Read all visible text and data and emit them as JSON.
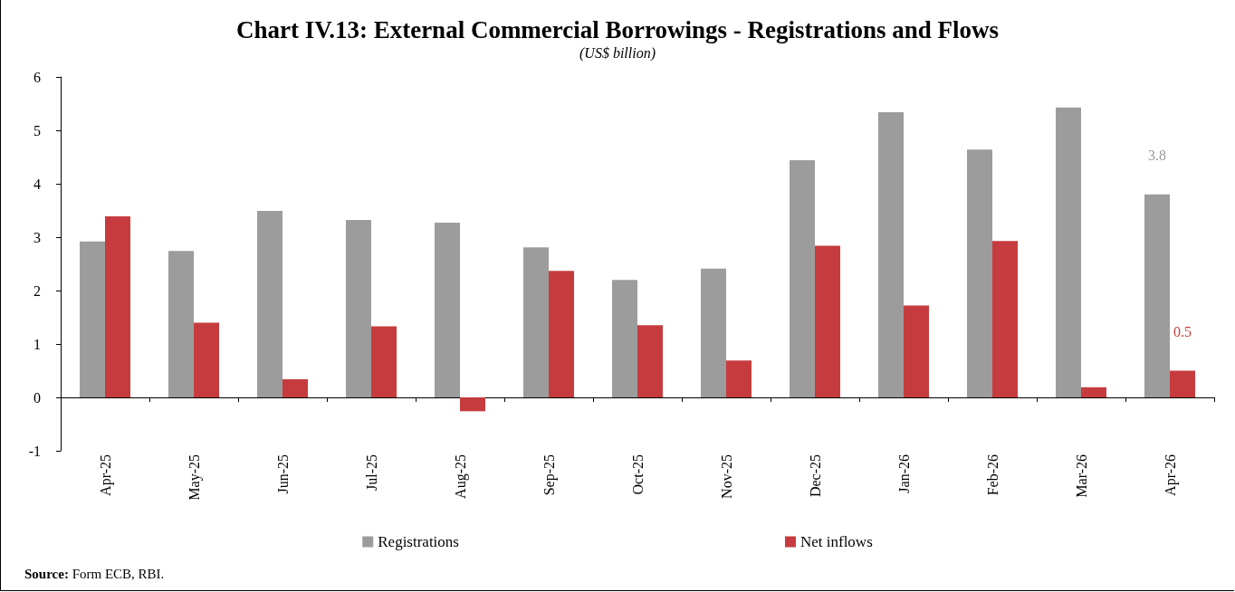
{
  "chart_data": {
    "type": "bar",
    "title": "Chart IV.13: External Commercial Borrowings - Registrations and Flows",
    "subtitle": "(US$ billion)",
    "categories": [
      "Apr-25",
      "May-25",
      "Jun-25",
      "Jul-25",
      "Aug-25",
      "Sep-25",
      "Oct-25",
      "Nov-25",
      "Dec-25",
      "Jan-26",
      "Feb-26",
      "Mar-26",
      "Apr-26"
    ],
    "series": [
      {
        "name": "Registrations",
        "color": "#9c9c9c",
        "values": [
          2.92,
          2.74,
          3.49,
          3.32,
          3.27,
          2.81,
          2.2,
          2.41,
          4.44,
          5.34,
          4.64,
          5.43,
          3.8
        ],
        "value_labels": [
          null,
          null,
          null,
          null,
          null,
          null,
          null,
          null,
          null,
          null,
          null,
          null,
          "3.8"
        ]
      },
      {
        "name": "Net inflows",
        "color": "#c63c3e",
        "values": [
          3.39,
          1.4,
          0.34,
          1.33,
          -0.26,
          2.37,
          1.35,
          0.69,
          2.84,
          1.72,
          2.93,
          0.19,
          0.5
        ],
        "value_labels": [
          null,
          null,
          null,
          null,
          null,
          null,
          null,
          null,
          null,
          null,
          null,
          null,
          "0.5"
        ]
      }
    ],
    "ylim": [
      -1,
      6
    ],
    "yticks": [
      -1,
      0,
      1,
      2,
      3,
      4,
      5,
      6
    ],
    "legend": "bottom",
    "annotations": [
      "Source: Form ECB, RBI."
    ]
  }
}
